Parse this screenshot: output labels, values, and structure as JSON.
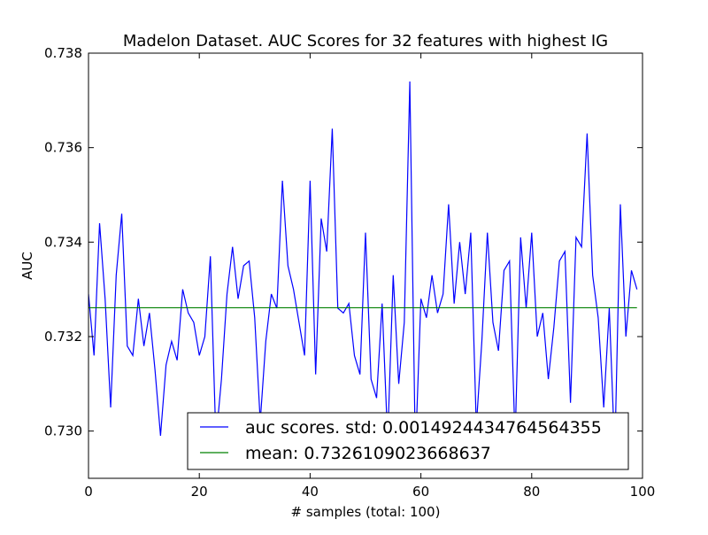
{
  "chart_data": {
    "type": "line",
    "title": "Madelon Dataset. AUC Scores for 32 features with highest IG",
    "xlabel": "# samples (total: 100)",
    "ylabel": "AUC",
    "xlim": [
      0,
      100
    ],
    "ylim": [
      0.729,
      0.738
    ],
    "x_ticks": [
      0,
      20,
      40,
      60,
      80,
      100
    ],
    "y_ticks": [
      0.73,
      0.732,
      0.734,
      0.736,
      0.738
    ],
    "x_tick_labels": [
      "0",
      "20",
      "40",
      "60",
      "80",
      "100"
    ],
    "y_tick_labels": [
      "0.730",
      "0.732",
      "0.734",
      "0.736",
      "0.738"
    ],
    "grid": false,
    "legend_position": "lower-right",
    "series": [
      {
        "name": "auc scores. std: 0.0014924434764564355",
        "color": "#0000ff",
        "x": [
          0,
          1,
          2,
          3,
          4,
          5,
          6,
          7,
          8,
          9,
          10,
          11,
          12,
          13,
          14,
          15,
          16,
          17,
          18,
          19,
          20,
          21,
          22,
          23,
          24,
          25,
          26,
          27,
          28,
          29,
          30,
          31,
          32,
          33,
          34,
          35,
          36,
          37,
          38,
          39,
          40,
          41,
          42,
          43,
          44,
          45,
          46,
          47,
          48,
          49,
          50,
          51,
          52,
          53,
          54,
          55,
          56,
          57,
          58,
          59,
          60,
          61,
          62,
          63,
          64,
          65,
          66,
          67,
          68,
          69,
          70,
          71,
          72,
          73,
          74,
          75,
          76,
          77,
          78,
          79,
          80,
          81,
          82,
          83,
          84,
          85,
          86,
          87,
          88,
          89,
          90,
          91,
          92,
          93,
          94,
          95,
          96,
          97,
          98,
          99
        ],
        "values": [
          0.7329,
          0.7316,
          0.7344,
          0.7328,
          0.7305,
          0.7333,
          0.7346,
          0.7318,
          0.7316,
          0.7328,
          0.7318,
          0.7325,
          0.7313,
          0.7299,
          0.7314,
          0.7319,
          0.7315,
          0.733,
          0.7325,
          0.7323,
          0.7316,
          0.732,
          0.7337,
          0.7298,
          0.7311,
          0.7329,
          0.7339,
          0.7328,
          0.7335,
          0.7336,
          0.7324,
          0.7302,
          0.7319,
          0.7329,
          0.7326,
          0.7353,
          0.7335,
          0.733,
          0.7323,
          0.7316,
          0.7353,
          0.7312,
          0.7345,
          0.7338,
          0.7364,
          0.7326,
          0.7325,
          0.7327,
          0.7316,
          0.7312,
          0.7342,
          0.7311,
          0.7307,
          0.7327,
          0.7298,
          0.7333,
          0.731,
          0.7323,
          0.7374,
          0.7295,
          0.7328,
          0.7324,
          0.7333,
          0.7325,
          0.7329,
          0.7348,
          0.7327,
          0.734,
          0.7329,
          0.7342,
          0.7301,
          0.7319,
          0.7342,
          0.7323,
          0.7317,
          0.7334,
          0.7336,
          0.7298,
          0.7341,
          0.7326,
          0.7342,
          0.732,
          0.7325,
          0.7311,
          0.7322,
          0.7336,
          0.7338,
          0.7306,
          0.7341,
          0.7339,
          0.7363,
          0.7333,
          0.7324,
          0.7305,
          0.7326,
          0.7295,
          0.7348,
          0.732,
          0.7334,
          0.733
        ]
      },
      {
        "name": "mean: 0.7326109023668637",
        "color": "#008000",
        "x": [
          0,
          99
        ],
        "values": [
          0.7326109023668637,
          0.7326109023668637
        ]
      }
    ]
  }
}
